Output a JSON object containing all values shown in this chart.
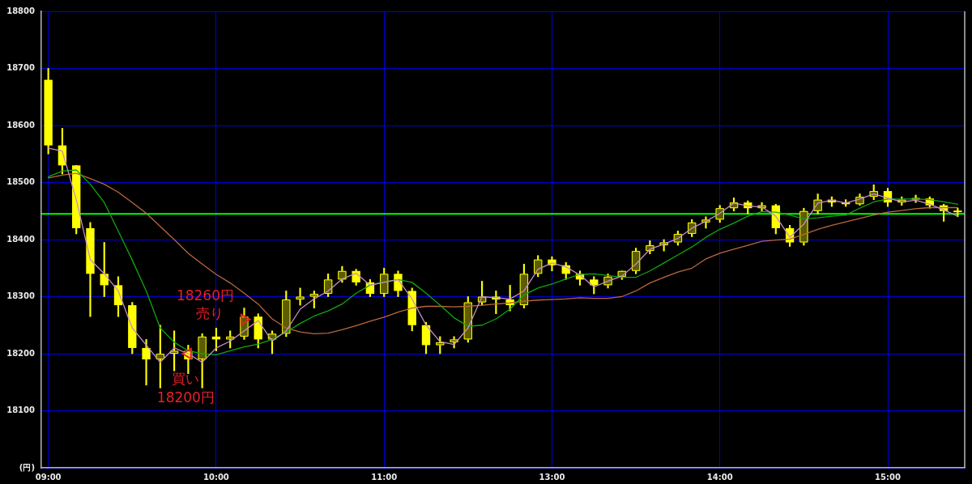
{
  "chart_data": {
    "type": "candlestick",
    "color": "#ffff00",
    "colors": [
      "#ffff00",
      "#ffff00",
      "#ffff00",
      "#ffff00",
      "#ffff00",
      "#ffff00",
      "#ffff00",
      "#ffff00",
      "#5c5c00",
      "#5c5c00",
      "#ffff00",
      "#5c5c00",
      "#ffff00",
      "#5c5c00",
      "#5c5c00",
      "#ffff00",
      "#5c5c00",
      "#5c5c00",
      "#5c5c00",
      "#5c5c00",
      "#5c5c00",
      "#5c5c00",
      "#ffff00",
      "#ffff00",
      "#5c5c00",
      "#ffff00",
      "#ffff00",
      "#ffff00",
      "#5c5c00",
      "#5c5c00",
      "#5c5c00",
      "#5c5c00",
      "#ffff00",
      "#ffff00",
      "#5c5c00",
      "#5c5c00",
      "#ffff00",
      "#ffff00",
      "#ffff00",
      "#ffff00",
      "#5c5c00",
      "#5c5c00",
      "#5c5c00",
      "#5c5c00",
      "#5c5c00",
      "#5c5c00",
      "#5c5c00",
      "#5c5c00",
      "#5c5c00",
      "#5c5c00",
      "#ffff00",
      "#5c5c00",
      "#ffff00",
      "#ffff00",
      "#5c5c00",
      "#5c5c00",
      "#ffff00",
      "#ffff00",
      "#5c5c00",
      "#5c5c00",
      "#ffff00",
      "#5c5c00",
      "#5c5c00",
      "#ffff00",
      "#ffff00",
      "#ffff00"
    ],
    "categories": [
      "09:00",
      null,
      null,
      null,
      null,
      null,
      null,
      null,
      null,
      null,
      null,
      null,
      "10:00",
      null,
      null,
      null,
      null,
      null,
      null,
      null,
      null,
      null,
      null,
      null,
      "11:00",
      null,
      null,
      null,
      null,
      null,
      null,
      null,
      null,
      null,
      null,
      null,
      "13:00",
      null,
      null,
      null,
      null,
      null,
      null,
      null,
      null,
      null,
      null,
      null,
      "14:00",
      null,
      null,
      null,
      null,
      null,
      null,
      null,
      null,
      null,
      null,
      null,
      "15:00",
      null,
      null,
      null,
      null,
      null
    ],
    "ohlc": [
      [
        18680,
        18700,
        18550,
        18565
      ],
      [
        18565,
        18595,
        18515,
        18530
      ],
      [
        18530,
        18530,
        18410,
        18420
      ],
      [
        18420,
        18430,
        18265,
        18340
      ],
      [
        18340,
        18395,
        18300,
        18320
      ],
      [
        18320,
        18335,
        18265,
        18285
      ],
      [
        18285,
        18290,
        18200,
        18210
      ],
      [
        18210,
        18225,
        18145,
        18190
      ],
      [
        18190,
        18250,
        18140,
        18200
      ],
      [
        18200,
        18240,
        18170,
        18205
      ],
      [
        18205,
        18215,
        18165,
        18190
      ],
      [
        18190,
        18235,
        18140,
        18230
      ],
      [
        18230,
        18245,
        18205,
        18225
      ],
      [
        18225,
        18240,
        18210,
        18230
      ],
      [
        18230,
        18280,
        18225,
        18265
      ],
      [
        18265,
        18270,
        18210,
        18225
      ],
      [
        18225,
        18240,
        18200,
        18235
      ],
      [
        18235,
        18310,
        18230,
        18295
      ],
      [
        18295,
        18315,
        18285,
        18300
      ],
      [
        18300,
        18310,
        18280,
        18305
      ],
      [
        18305,
        18340,
        18300,
        18330
      ],
      [
        18330,
        18353,
        18325,
        18345
      ],
      [
        18345,
        18348,
        18320,
        18325
      ],
      [
        18325,
        18330,
        18300,
        18305
      ],
      [
        18305,
        18350,
        18300,
        18340
      ],
      [
        18340,
        18345,
        18300,
        18310
      ],
      [
        18310,
        18315,
        18240,
        18250
      ],
      [
        18250,
        18255,
        18200,
        18215
      ],
      [
        18215,
        18230,
        18200,
        18220
      ],
      [
        18220,
        18230,
        18210,
        18225
      ],
      [
        18225,
        18300,
        18220,
        18290
      ],
      [
        18290,
        18327,
        18285,
        18300
      ],
      [
        18300,
        18310,
        18270,
        18295
      ],
      [
        18295,
        18320,
        18275,
        18285
      ],
      [
        18285,
        18357,
        18280,
        18340
      ],
      [
        18340,
        18372,
        18335,
        18365
      ],
      [
        18365,
        18370,
        18345,
        18355
      ],
      [
        18355,
        18360,
        18330,
        18340
      ],
      [
        18340,
        18345,
        18320,
        18330
      ],
      [
        18330,
        18335,
        18305,
        18320
      ],
      [
        18320,
        18340,
        18315,
        18335
      ],
      [
        18335,
        18345,
        18330,
        18345
      ],
      [
        18345,
        18385,
        18340,
        18380
      ],
      [
        18380,
        18398,
        18375,
        18390
      ],
      [
        18390,
        18400,
        18380,
        18395
      ],
      [
        18395,
        18415,
        18390,
        18410
      ],
      [
        18410,
        18435,
        18405,
        18430
      ],
      [
        18430,
        18440,
        18420,
        18435
      ],
      [
        18435,
        18460,
        18430,
        18455
      ],
      [
        18455,
        18473,
        18450,
        18465
      ],
      [
        18465,
        18468,
        18445,
        18455
      ],
      [
        18455,
        18465,
        18450,
        18460
      ],
      [
        18460,
        18462,
        18410,
        18420
      ],
      [
        18420,
        18425,
        18388,
        18395
      ],
      [
        18395,
        18455,
        18390,
        18450
      ],
      [
        18450,
        18480,
        18445,
        18470
      ],
      [
        18470,
        18475,
        18458,
        18465
      ],
      [
        18465,
        18470,
        18458,
        18462
      ],
      [
        18462,
        18480,
        18460,
        18475
      ],
      [
        18475,
        18496,
        18470,
        18485
      ],
      [
        18485,
        18490,
        18458,
        18465
      ],
      [
        18465,
        18475,
        18460,
        18470
      ],
      [
        18470,
        18478,
        18465,
        18472
      ],
      [
        18472,
        18475,
        18455,
        18460
      ],
      [
        18460,
        18462,
        18432,
        18450
      ],
      [
        18450,
        18455,
        18440,
        18448
      ]
    ],
    "series": [
      {
        "type": "line",
        "color": "#c88cc8",
        "values": [
          18560,
          18555,
          18470,
          18365,
          18340,
          18310,
          18245,
          18215,
          18185,
          18210,
          18200,
          18185,
          18210,
          18222,
          18240,
          18258,
          18222,
          18240,
          18278,
          18296,
          18310,
          18331,
          18341,
          18320,
          18325,
          18330,
          18296,
          18250,
          18221,
          18216,
          18245,
          18300,
          18298,
          18296,
          18310,
          18348,
          18359,
          18352,
          18338,
          18317,
          18327,
          18336,
          18357,
          18383,
          18392,
          18402,
          18420,
          18432,
          18446,
          18464,
          18459,
          18457,
          18441,
          18404,
          18427,
          18464,
          18469,
          18464,
          18471,
          18480,
          18473,
          18466,
          18469,
          18462,
          18452,
          18441
        ]
      },
      {
        "type": "line",
        "color": "#10a810",
        "values": [
          18510,
          18520,
          18522,
          18497,
          18465,
          18415,
          18364,
          18310,
          18245,
          18220,
          18205,
          18200,
          18198,
          18205,
          18212,
          18217,
          18225,
          18238,
          18253,
          18266,
          18275,
          18287,
          18306,
          18320,
          18326,
          18330,
          18325,
          18306,
          18285,
          18263,
          18248,
          18250,
          18261,
          18278,
          18303,
          18315,
          18322,
          18331,
          18339,
          18340,
          18337,
          18334,
          18334,
          18345,
          18359,
          18373,
          18387,
          18404,
          18418,
          18429,
          18441,
          18449,
          18448,
          18443,
          18436,
          18438,
          18441,
          18443,
          18455,
          18466,
          18471,
          18471,
          18471,
          18470,
          18466,
          18462
        ]
      },
      {
        "type": "line",
        "color": "#b8683c",
        "values": [
          18508,
          18513,
          18516,
          18507,
          18497,
          18483,
          18465,
          18446,
          18423,
          18400,
          18376,
          18357,
          18339,
          18324,
          18306,
          18287,
          18261,
          18245,
          18238,
          18235,
          18236,
          18242,
          18249,
          18257,
          18264,
          18273,
          18280,
          18283,
          18283,
          18282,
          18283,
          18285,
          18287,
          18289,
          18292,
          18294,
          18295,
          18296,
          18298,
          18297,
          18297,
          18300,
          18310,
          18324,
          18334,
          18343,
          18350,
          18366,
          18376,
          18383,
          18390,
          18397,
          18399,
          18401,
          18409,
          18418,
          18425,
          18431,
          18437,
          18443,
          18448,
          18451,
          18454,
          18456,
          18456,
          18456
        ]
      },
      {
        "type": "scatter",
        "name": "買い",
        "color": "#e8202a",
        "marker": "triangle",
        "values": [
          null,
          null,
          null,
          null,
          null,
          null,
          null,
          null,
          null,
          null,
          18200,
          null,
          null,
          null,
          null,
          null,
          null,
          null,
          null,
          null,
          null,
          null,
          null,
          null,
          null,
          null,
          null,
          null,
          null,
          null,
          null,
          null,
          null,
          null,
          null,
          null,
          null,
          null,
          null,
          null,
          null,
          null,
          null,
          null,
          null,
          null,
          null,
          null,
          null,
          null,
          null,
          null,
          null,
          null,
          null,
          null,
          null,
          null,
          null,
          null,
          null,
          null,
          null,
          null,
          null,
          null
        ],
        "value_labels": [
          null,
          null,
          null,
          null,
          null,
          null,
          null,
          null,
          null,
          null,
          "18200円",
          null,
          null,
          null,
          null,
          null,
          null,
          null,
          null,
          null,
          null,
          null,
          null,
          null,
          null,
          null,
          null,
          null,
          null,
          null,
          null,
          null,
          null,
          null,
          null,
          null,
          null,
          null,
          null,
          null,
          null,
          null,
          null,
          null,
          null,
          null,
          null,
          null,
          null,
          null,
          null,
          null,
          null,
          null,
          null,
          null,
          null,
          null,
          null,
          null,
          null,
          null,
          null,
          null,
          null,
          null
        ]
      },
      {
        "type": "scatter",
        "name": "売り",
        "color": "#e8202a",
        "marker": "triangle",
        "values": [
          null,
          null,
          null,
          null,
          null,
          null,
          null,
          null,
          null,
          null,
          null,
          null,
          null,
          null,
          18260,
          null,
          null,
          null,
          null,
          null,
          null,
          null,
          null,
          null,
          null,
          null,
          null,
          null,
          null,
          null,
          null,
          null,
          null,
          null,
          null,
          null,
          null,
          null,
          null,
          null,
          null,
          null,
          null,
          null,
          null,
          null,
          null,
          null,
          null,
          null,
          null,
          null,
          null,
          null,
          null,
          null,
          null,
          null,
          null,
          null,
          null,
          null,
          null,
          null,
          null,
          null
        ],
        "value_labels": [
          null,
          null,
          null,
          null,
          null,
          null,
          null,
          null,
          null,
          null,
          null,
          null,
          null,
          null,
          "18260円",
          null,
          null,
          null,
          null,
          null,
          null,
          null,
          null,
          null,
          null,
          null,
          null,
          null,
          null,
          null,
          null,
          null,
          null,
          null,
          null,
          null,
          null,
          null,
          null,
          null,
          null,
          null,
          null,
          null,
          null,
          null,
          null,
          null,
          null,
          null,
          null,
          null,
          null,
          null,
          null,
          null,
          null,
          null,
          null,
          null,
          null,
          null,
          null,
          null,
          null,
          null
        ]
      }
    ],
    "ylim": [
      18000,
      18800
    ],
    "yticks": [
      {
        "value": 18000,
        "label": "(円)"
      },
      18100,
      18200,
      18300,
      18400,
      18500,
      18600,
      18700,
      18800
    ],
    "grid": true,
    "legend": false,
    "marker": "none",
    "ref_lines": [
      {
        "axis": "y",
        "value": 18445,
        "color": "#00ff00"
      }
    ]
  }
}
